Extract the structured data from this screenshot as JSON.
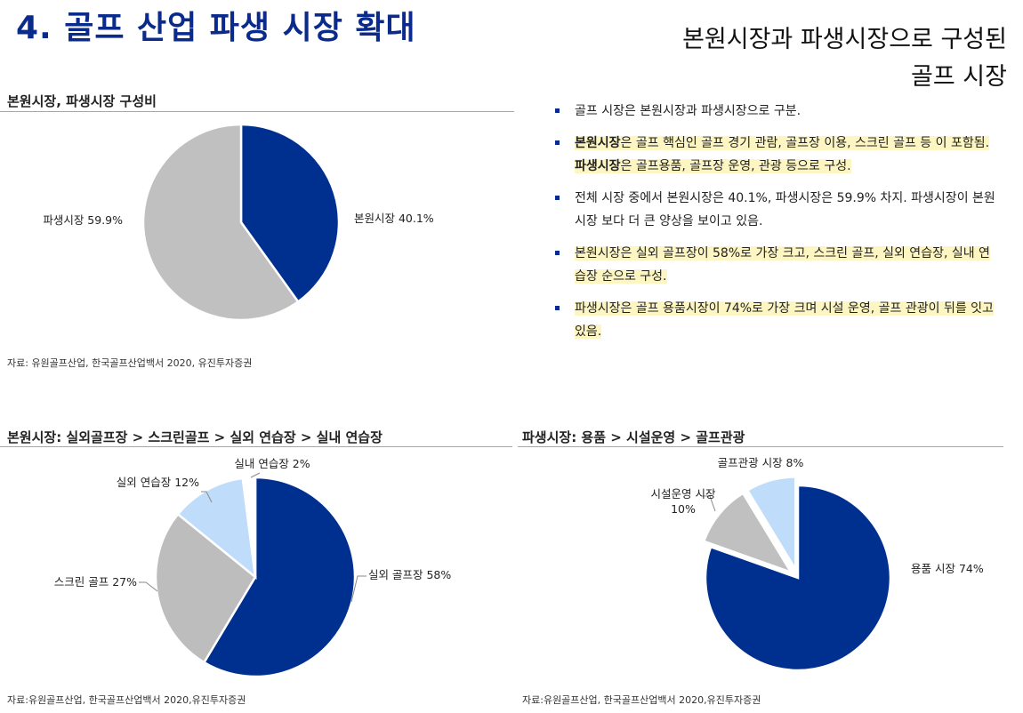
{
  "header": {
    "title": "4. 골프 산업 파생 시장 확대",
    "headline_line1": "본원시장과 파생시장으로 구성된",
    "headline_line2": "골프 시장"
  },
  "colors": {
    "navy": "#00308f",
    "gray": "#c0c0c0",
    "light_gray": "#bdbdbd",
    "light_blue": "#bfdcfa",
    "title_blue": "#0a2a8c"
  },
  "chart1": {
    "title": "본원시장, 파생시장 구성비",
    "source": "자료: 유원골프산업, 한국골프산업백서 2020, 유진투자증권"
  },
  "chart2": {
    "title": "본원시장: 실외골프장 > 스크린골프 > 실외 연습장 > 실내 연습장",
    "source": "자료:유원골프산업, 한국골프산업백서 2020,유진투자증권"
  },
  "chart3": {
    "title": "파생시장: 용품 > 시설운영 > 골프관광",
    "source": "자료:유원골프산업, 한국골프산업백서 2020,유진투자증권"
  },
  "bullets": [
    {
      "parts": [
        {
          "t": "골프 시장은 본원시장과 파생시장으로 구분."
        }
      ]
    },
    {
      "parts": [
        {
          "t": "본원시장",
          "b": true,
          "h": true
        },
        {
          "t": "은 골프 핵심인 골프 경기 관람, 골프장 이용, 스크린 골프 등 이 포함됨. ",
          "h": true
        },
        {
          "t": "파생시장",
          "b": true,
          "h": true
        },
        {
          "t": "은 골프용품, 골프장 운영, 관광 등으로 구성.",
          "h": true
        }
      ]
    },
    {
      "parts": [
        {
          "t": "전체 시장 중에서 본원시장은 40.1%, 파생시장은 59.9% 차지. 파생시장이 본원시장 보다 더 큰 양상을 보이고 있음."
        }
      ]
    },
    {
      "parts": [
        {
          "t": "본원시장은 실외 골프장이 58%로 가장 크고, 스크린 골프, 실외 연습장, 실내 연습장 순으로 구성.",
          "h": true
        }
      ]
    },
    {
      "parts": [
        {
          "t": "파생시장은 골프 용품시장이 74%로 가장 크며 시설 운영, 골프 관광이 뒤를 잇고 있음.",
          "h": true
        }
      ]
    }
  ],
  "chart_data": [
    {
      "type": "pie",
      "title": "본원시장, 파생시장 구성비",
      "slices": [
        {
          "label": "본원시장 40.1%",
          "value": 40.1,
          "color": "#00308f"
        },
        {
          "label": "파생시장 59.9%",
          "value": 59.9,
          "color": "#c0c0c0"
        }
      ]
    },
    {
      "type": "pie",
      "title": "본원시장: 실외골프장 > 스크린골프 > 실외 연습장 > 실내 연습장",
      "slices": [
        {
          "label": "실외 골프장 58%",
          "value": 58,
          "color": "#00308f"
        },
        {
          "label": "스크린 골프 27%",
          "value": 27,
          "color": "#bdbdbd"
        },
        {
          "label": "실외 연습장 12%",
          "value": 12,
          "color": "#bfdcfa"
        },
        {
          "label": "실내 연습장 2%",
          "value": 2,
          "color": "#ffffff"
        }
      ]
    },
    {
      "type": "pie",
      "title": "파생시장: 용품 > 시설운영 > 골프관광",
      "slices": [
        {
          "label": "용품 시장 74%",
          "value": 74,
          "color": "#00308f"
        },
        {
          "label_lines": [
            "시설운영 시장",
            "10%"
          ],
          "value": 10,
          "color": "#c0c0c0"
        },
        {
          "label": "골프관광 시장 8%",
          "value": 8,
          "color": "#bfdcfa"
        }
      ]
    }
  ]
}
